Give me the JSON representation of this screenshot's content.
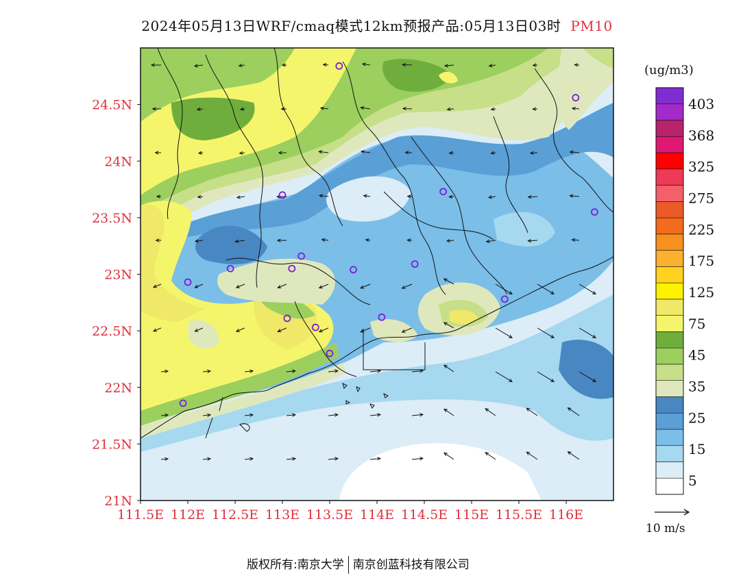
{
  "title": {
    "text": "2024年05月13日WRF/cmaq模式12km预报产品:05月13日03时",
    "pollutant": "PM10"
  },
  "map": {
    "lat_labels": [
      "24.5N",
      "24N",
      "23.5N",
      "23N",
      "22.5N",
      "22N",
      "21.5N",
      "21N"
    ],
    "lon_labels": [
      "111.5E",
      "112E",
      "112.5E",
      "113E",
      "113.5E",
      "114E",
      "114.5E",
      "115E",
      "115.5E",
      "116E"
    ],
    "lat_range": [
      21,
      25
    ],
    "lon_range": [
      111.5,
      116.5
    ],
    "label_color": "#e0303a",
    "stations": [
      {
        "lon": 113.6,
        "lat": 24.84
      },
      {
        "lon": 116.1,
        "lat": 24.56
      },
      {
        "lon": 113.0,
        "lat": 23.7
      },
      {
        "lon": 114.7,
        "lat": 23.73
      },
      {
        "lon": 116.3,
        "lat": 23.55
      },
      {
        "lon": 112.45,
        "lat": 23.05
      },
      {
        "lon": 113.1,
        "lat": 23.05
      },
      {
        "lon": 113.2,
        "lat": 23.16
      },
      {
        "lon": 113.75,
        "lat": 23.04
      },
      {
        "lon": 114.4,
        "lat": 23.09
      },
      {
        "lon": 112.0,
        "lat": 22.93
      },
      {
        "lon": 115.35,
        "lat": 22.78
      },
      {
        "lon": 113.05,
        "lat": 22.61
      },
      {
        "lon": 113.35,
        "lat": 22.53
      },
      {
        "lon": 114.05,
        "lat": 22.62
      },
      {
        "lon": 113.5,
        "lat": 22.3
      },
      {
        "lon": 111.95,
        "lat": 21.86
      }
    ]
  },
  "legend": {
    "unit": "(ug/m3)",
    "labels": [
      "403",
      "368",
      "325",
      "275",
      "225",
      "175",
      "125",
      "75",
      "45",
      "35",
      "25",
      "15",
      "5"
    ],
    "colors": [
      "#ffffff",
      "#dcedf7",
      "#a6d8f0",
      "#7bbee8",
      "#5a9fd6",
      "#4887c2",
      "#dfe8bd",
      "#c6df88",
      "#9ccf5e",
      "#6fae3c",
      "#f5f56c",
      "#f0e868",
      "#fff200",
      "#ffd21f",
      "#fbb02e",
      "#f7901f",
      "#f36b1d",
      "#eb5a27",
      "#f4606a",
      "#ed3a56",
      "#ff0000",
      "#e01873",
      "#b8236a",
      "#a52acb",
      "#7f2dd0"
    ]
  },
  "wind_reference": {
    "label": "10 m/s"
  },
  "footer": {
    "left": "版权所有:南京大学",
    "right": "南京创蓝科技有限公司"
  }
}
